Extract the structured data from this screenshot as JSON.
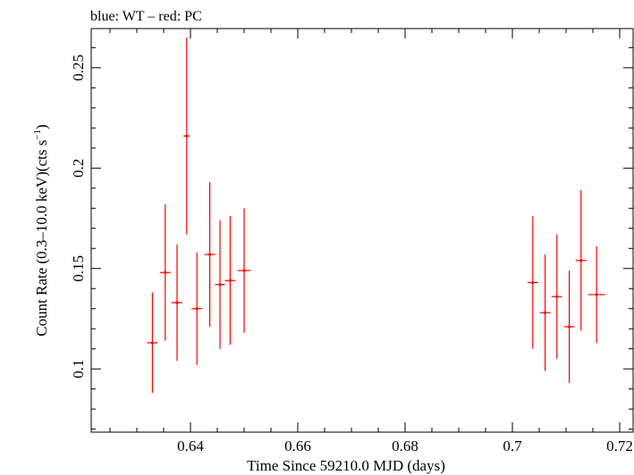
{
  "chart_data": {
    "type": "scatter",
    "title": "blue: WT – red: PC",
    "xlabel": "Time Since 59210.0 MJD (days)",
    "ylabel_main": "Count Rate (0.3–10.0 keV)(cts s",
    "ylabel_sup": "−1",
    "ylabel_close": ")",
    "xlim": [
      0.6215,
      0.7225
    ],
    "ylim": [
      0.0685,
      0.2695
    ],
    "x_ticks": [
      {
        "value": 0.64,
        "label": "0.64"
      },
      {
        "value": 0.66,
        "label": "0.66"
      },
      {
        "value": 0.68,
        "label": "0.68"
      },
      {
        "value": 0.7,
        "label": "0.7"
      },
      {
        "value": 0.72,
        "label": "0.72"
      }
    ],
    "y_ticks": [
      {
        "value": 0.1,
        "label": "0.1"
      },
      {
        "value": 0.15,
        "label": "0.15"
      },
      {
        "value": 0.2,
        "label": "0.2"
      },
      {
        "value": 0.25,
        "label": "0.25"
      }
    ],
    "x_minor_step": 0.005,
    "y_minor_step": 0.01,
    "grid": false,
    "series": [
      {
        "color": "#ff0000",
        "points": [
          {
            "x": 0.6329,
            "xerr": 0.001,
            "y": 0.113,
            "yerr": 0.025
          },
          {
            "x": 0.6353,
            "xerr": 0.001,
            "y": 0.148,
            "yerr": 0.034
          },
          {
            "x": 0.6375,
            "xerr": 0.001,
            "y": 0.133,
            "yerr": 0.029
          },
          {
            "x": 0.6393,
            "xerr": 0.0006,
            "y": 0.216,
            "yerr": 0.049
          },
          {
            "x": 0.6412,
            "xerr": 0.001,
            "y": 0.13,
            "yerr": 0.028
          },
          {
            "x": 0.6436,
            "xerr": 0.001,
            "y": 0.157,
            "yerr": 0.036
          },
          {
            "x": 0.6455,
            "xerr": 0.0009,
            "y": 0.142,
            "yerr": 0.032
          },
          {
            "x": 0.6474,
            "xerr": 0.001,
            "y": 0.144,
            "yerr": 0.032
          },
          {
            "x": 0.65,
            "xerr": 0.0012,
            "y": 0.149,
            "yerr": 0.031
          },
          {
            "x": 0.7038,
            "xerr": 0.001,
            "y": 0.143,
            "yerr": 0.033
          },
          {
            "x": 0.7061,
            "xerr": 0.001,
            "y": 0.128,
            "yerr": 0.029
          },
          {
            "x": 0.7083,
            "xerr": 0.001,
            "y": 0.136,
            "yerr": 0.031
          },
          {
            "x": 0.7106,
            "xerr": 0.001,
            "y": 0.121,
            "yerr": 0.028
          },
          {
            "x": 0.7128,
            "xerr": 0.001,
            "y": 0.154,
            "yerr": 0.035
          },
          {
            "x": 0.7157,
            "xerr": 0.0016,
            "y": 0.137,
            "yerr": 0.024
          }
        ]
      }
    ]
  }
}
